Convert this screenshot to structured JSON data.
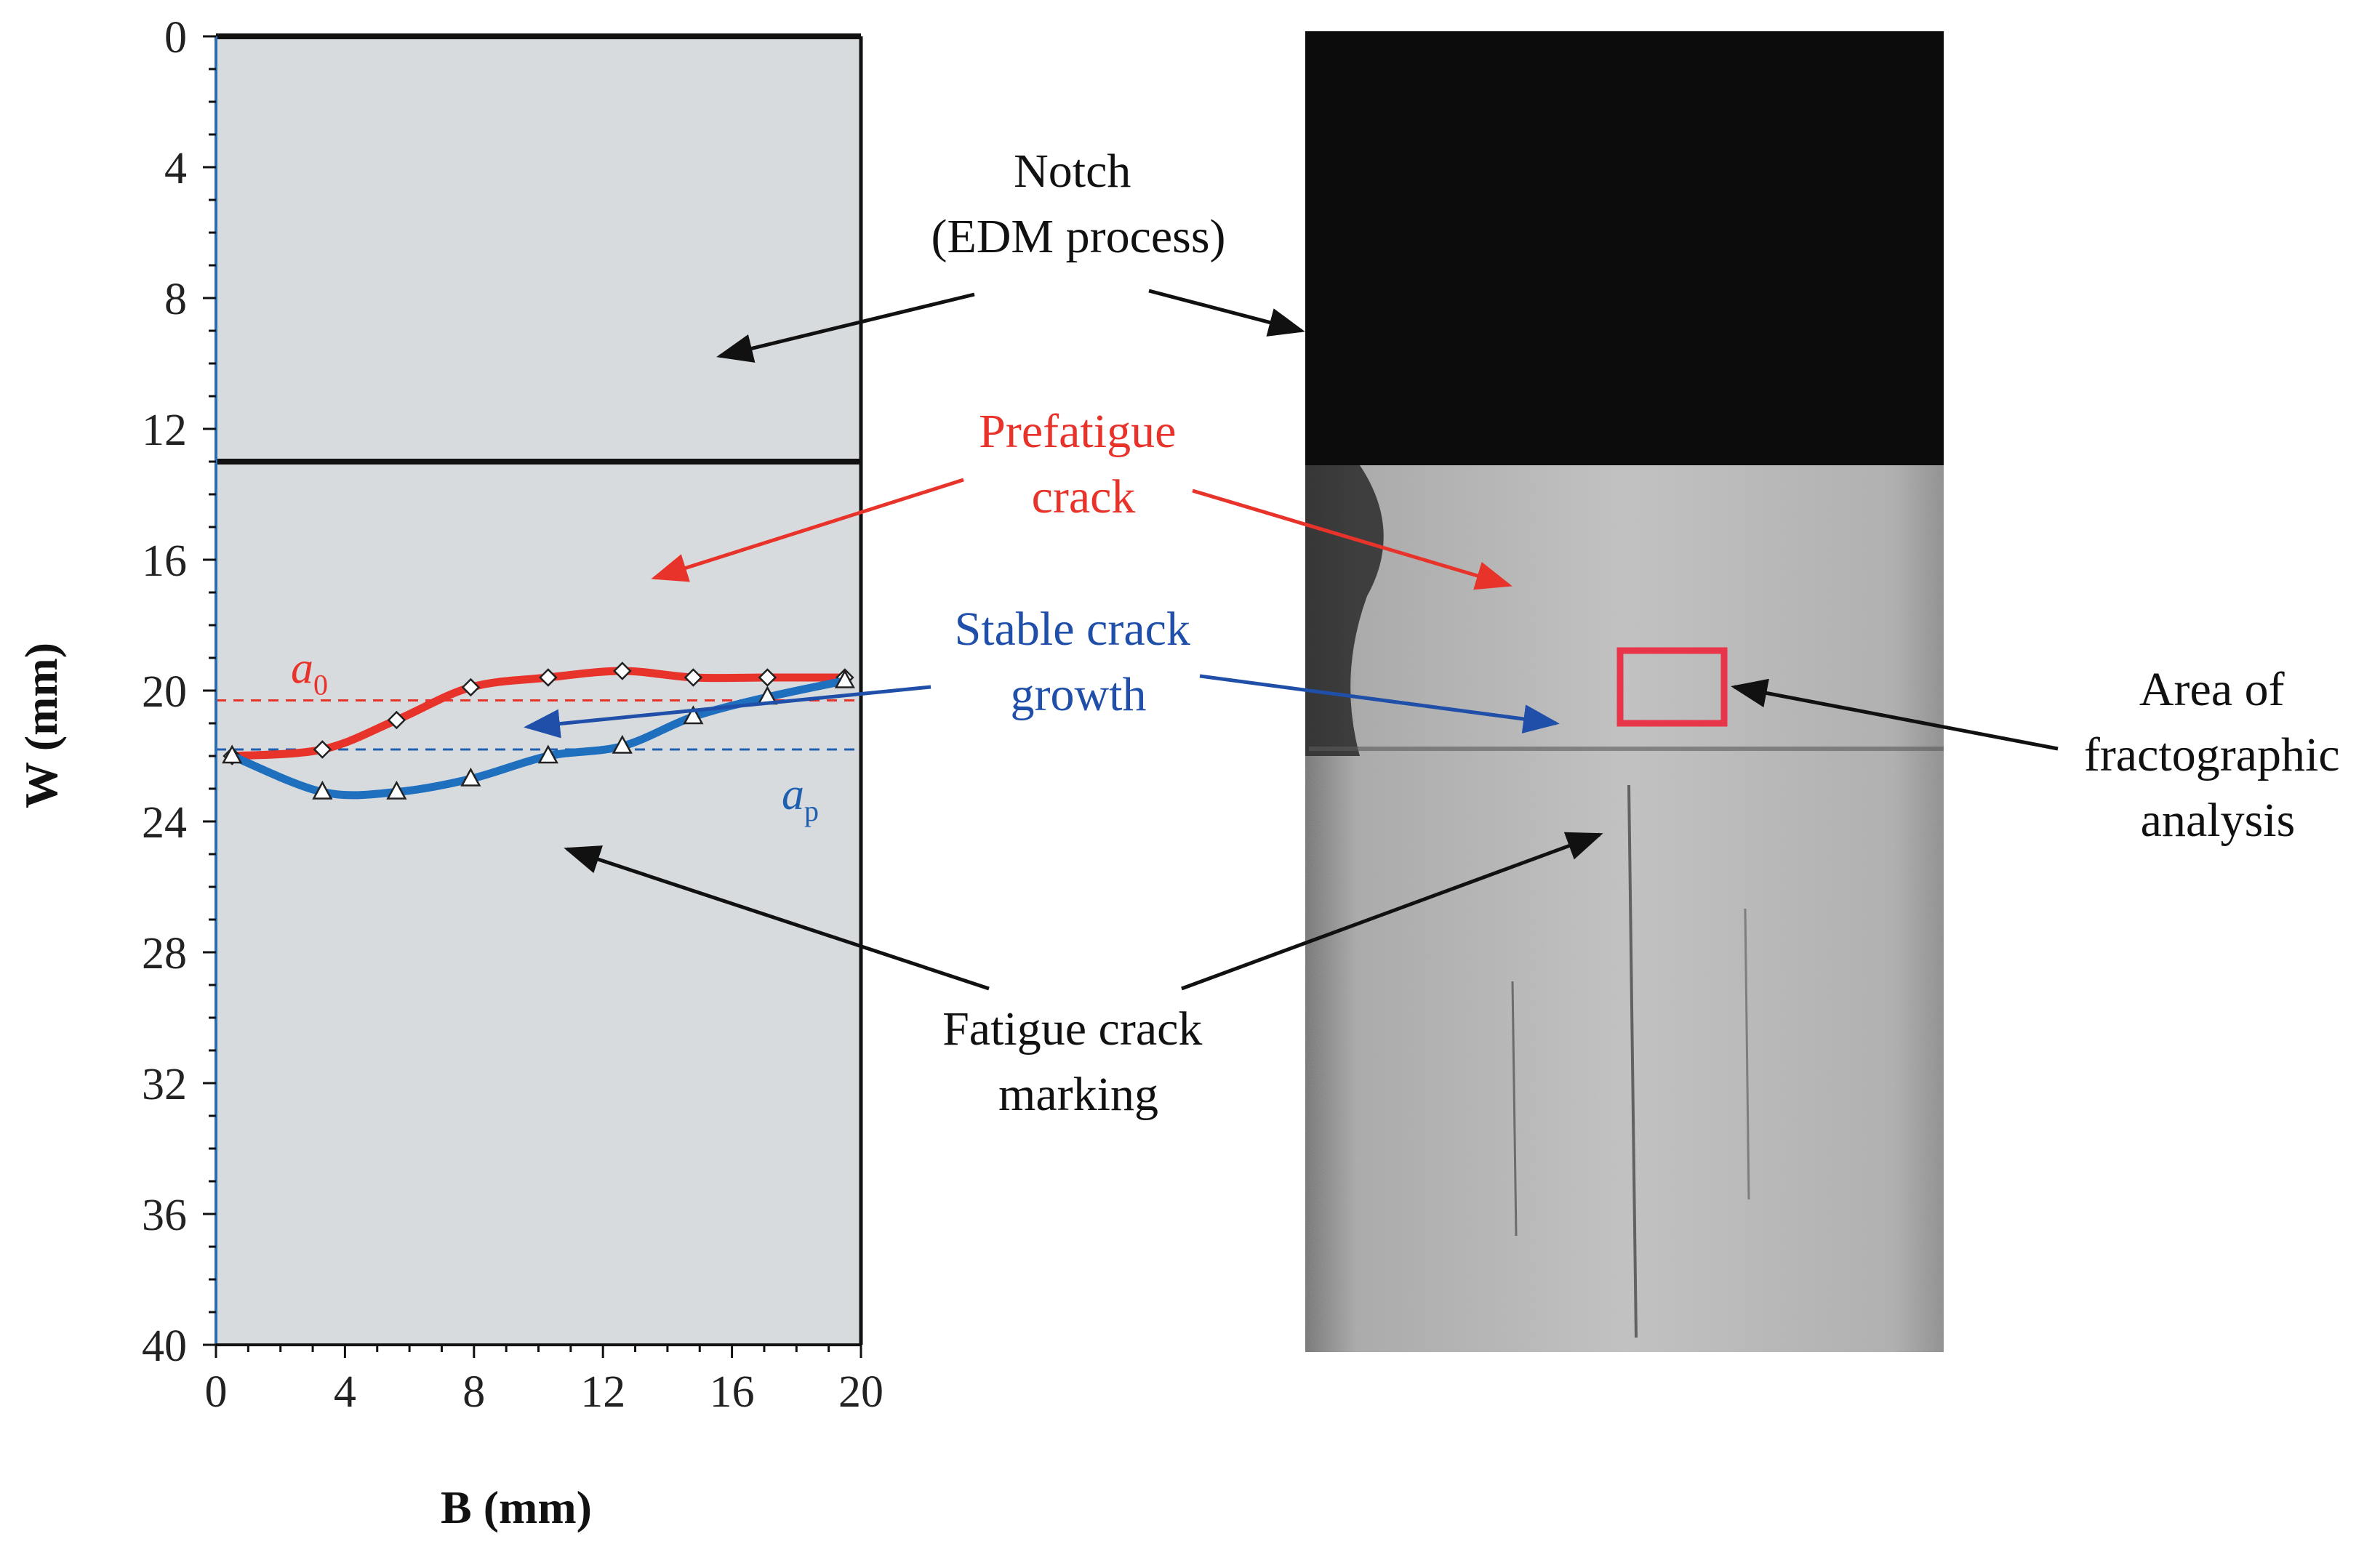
{
  "chart_data": {
    "type": "line",
    "xlabel": "B (mm)",
    "ylabel": "W (mm)",
    "xlim": [
      0,
      20
    ],
    "ylim": [
      0,
      40
    ],
    "y_inverted": true,
    "x_ticks": [
      "0",
      "4",
      "8",
      "12",
      "16",
      "20"
    ],
    "y_ticks": [
      "0",
      "4",
      "8",
      "12",
      "16",
      "20",
      "24",
      "28",
      "32",
      "36",
      "40"
    ],
    "grid": false,
    "notch_lines": [
      0,
      13
    ],
    "series": [
      {
        "name": "",
        "color": "#e8332a",
        "marker": "diamond",
        "x": [
          0.5,
          3.3,
          5.6,
          7.9,
          10.3,
          12.6,
          14.8,
          17.1,
          19.5
        ],
        "y": [
          22.0,
          21.8,
          20.9,
          19.9,
          19.6,
          19.4,
          19.6,
          19.6,
          19.6
        ]
      },
      {
        "name": "",
        "color": "#1f6fbf",
        "marker": "triangle",
        "x": [
          0.5,
          3.3,
          5.6,
          7.9,
          10.3,
          12.6,
          14.8,
          17.1,
          19.5
        ],
        "y": [
          22.0,
          23.1,
          23.1,
          22.7,
          22.0,
          21.7,
          20.8,
          20.2,
          19.7
        ]
      }
    ],
    "reference_lines": [
      {
        "label": "a",
        "sub": "0",
        "y": 20.3,
        "color": "#e8332a",
        "style": "dashed"
      },
      {
        "label": "a",
        "sub": "p",
        "y": 21.8,
        "color": "#1f5fb0",
        "style": "dashed"
      }
    ]
  },
  "annotations": {
    "notch": [
      "Notch",
      "(EDM process)"
    ],
    "prefatigue": [
      "Prefatigue",
      "crack"
    ],
    "stable": [
      "Stable crack",
      "growth"
    ],
    "fatigue_marking": [
      "Fatigue crack",
      "marking"
    ],
    "fractographic": [
      "Area of",
      "fractographic",
      "analysis"
    ]
  },
  "colors": {
    "plot_background": "#d8dbde",
    "prefatigue_text": "#e8332a",
    "stable_text": "#1f4fa8",
    "highlight_box": "#e8354a",
    "notch_region": "#0c0c0c",
    "fracture_surface": "#b9b9b9"
  }
}
